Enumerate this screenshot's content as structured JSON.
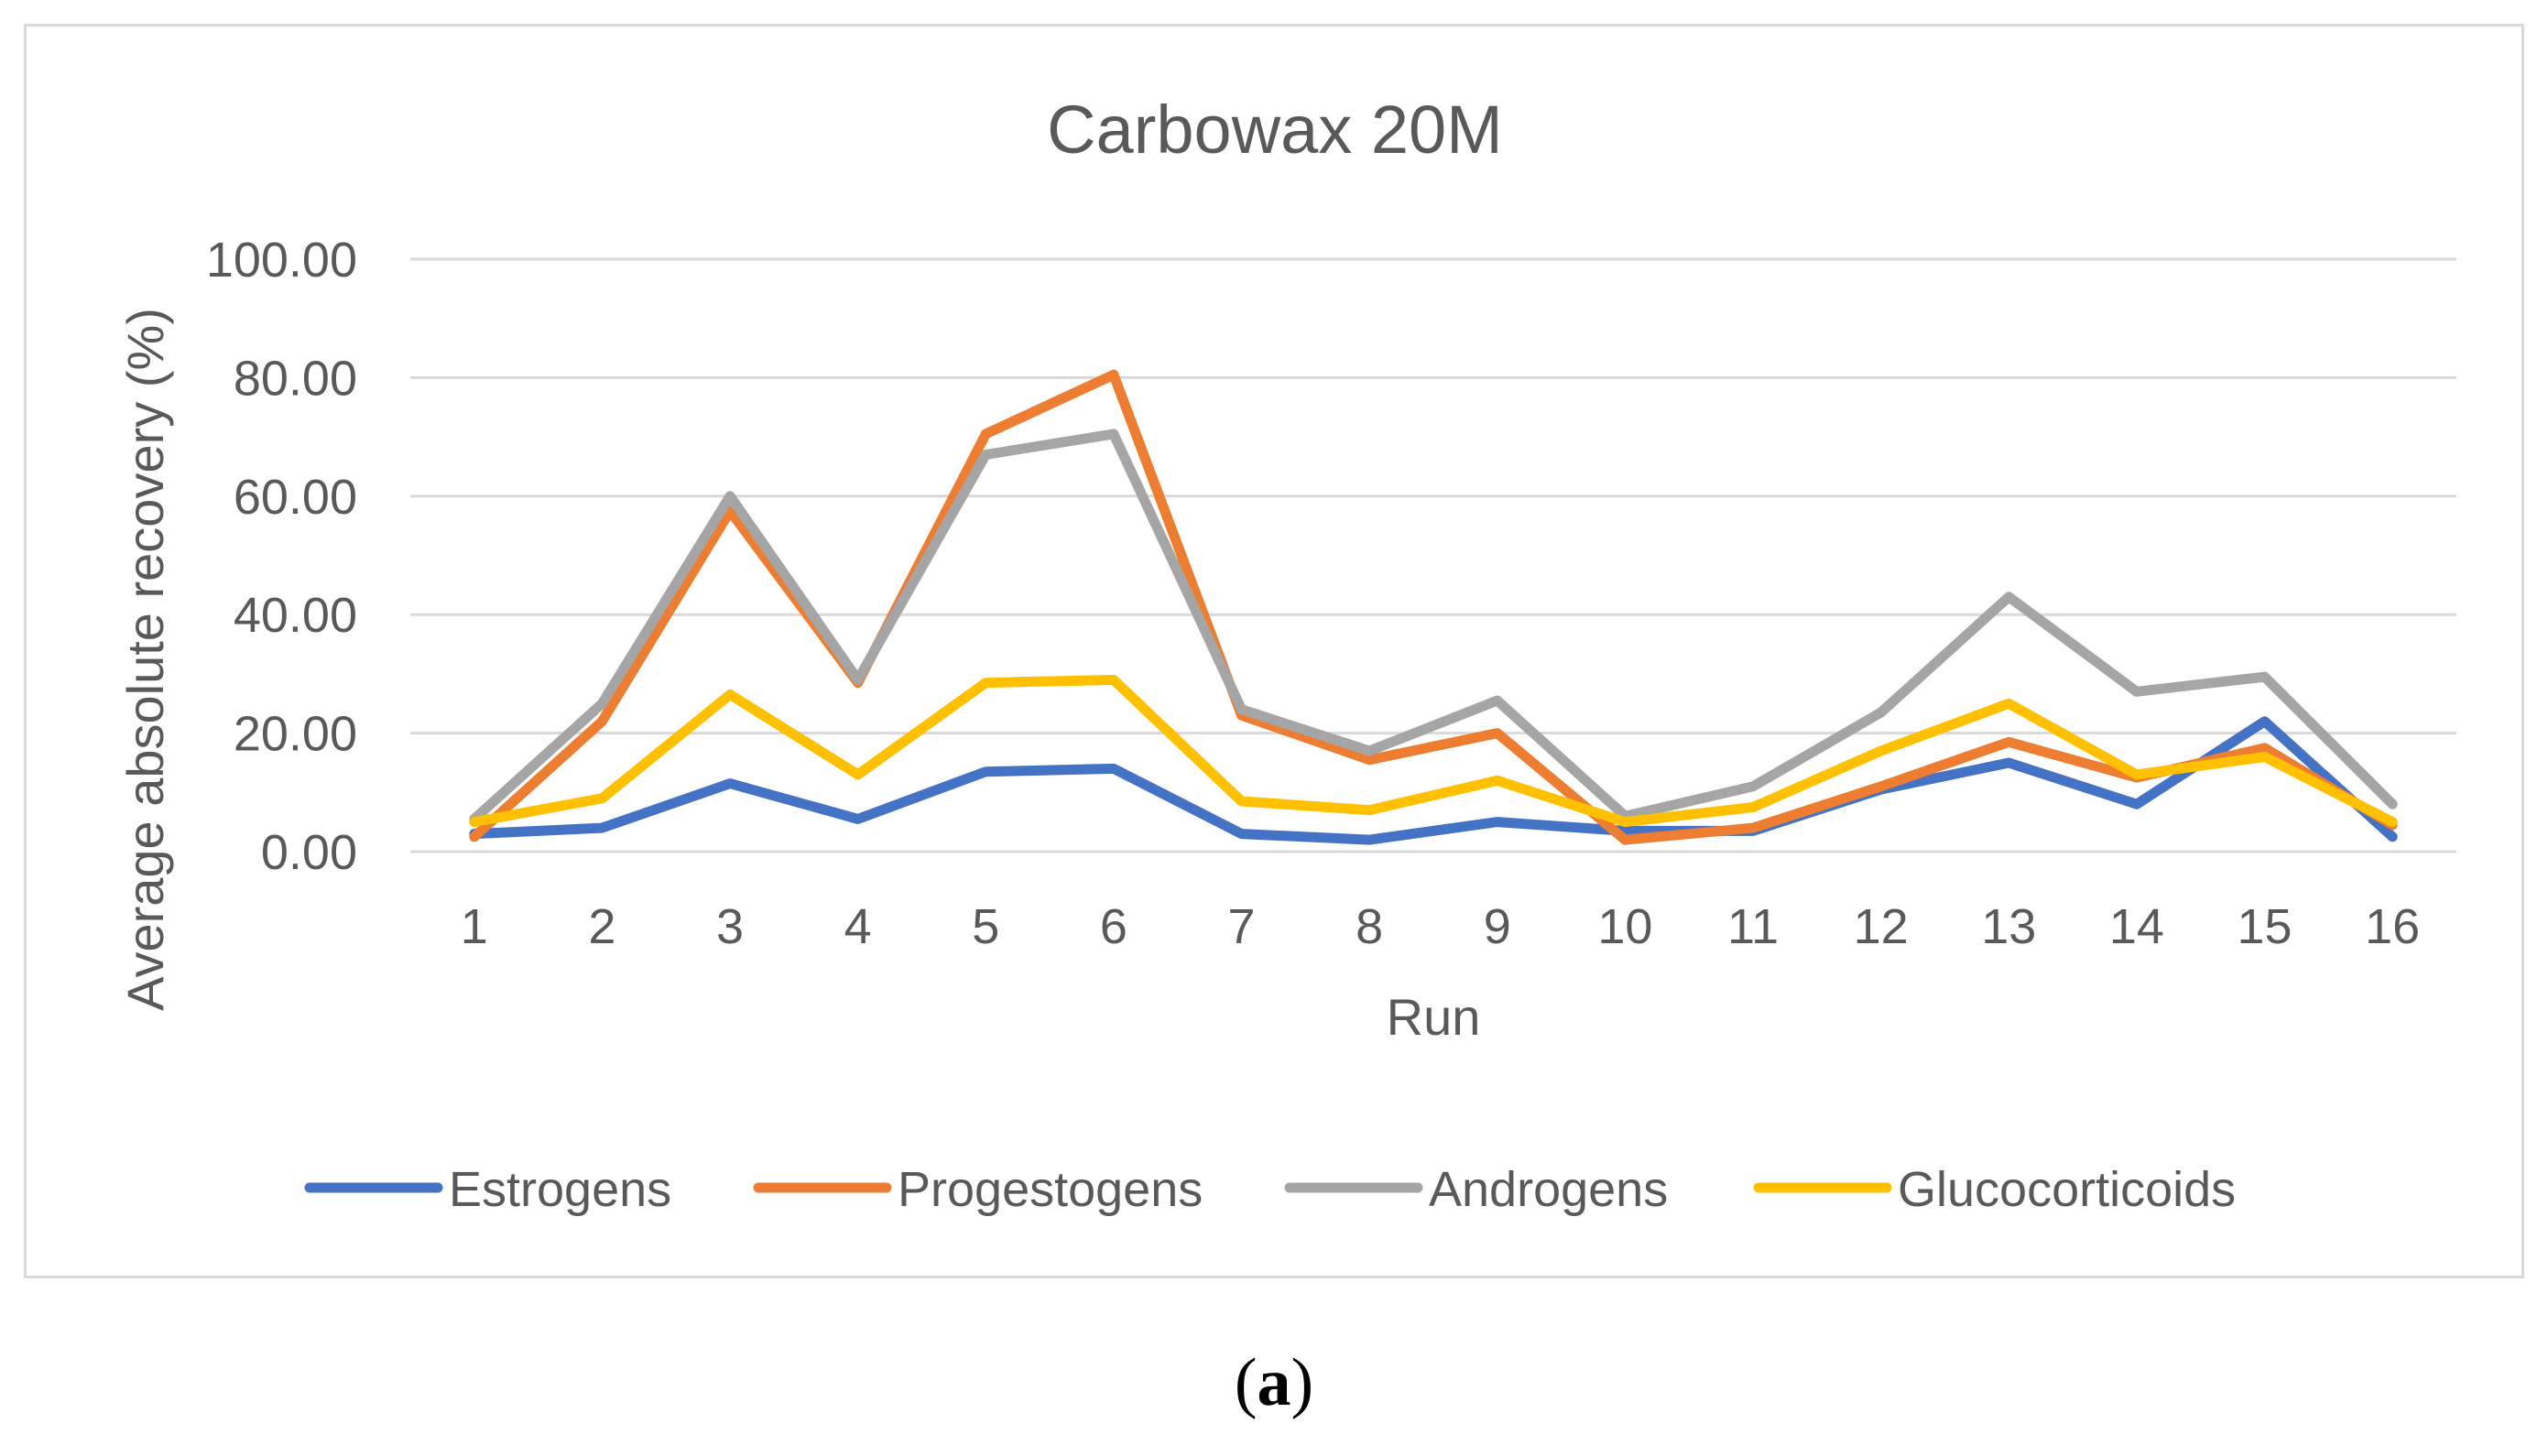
{
  "chart_data": {
    "type": "line",
    "title": "Carbowax 20M",
    "xlabel": "Run",
    "ylabel": "Average absolute recovery (%)",
    "categories": [
      "1",
      "2",
      "3",
      "4",
      "5",
      "6",
      "7",
      "8",
      "9",
      "10",
      "11",
      "12",
      "13",
      "14",
      "15",
      "16"
    ],
    "ylim": [
      0,
      100
    ],
    "yticks": [
      "0.00",
      "20.00",
      "40.00",
      "60.00",
      "80.00",
      "100.00"
    ],
    "grid": true,
    "legend_position": "bottom",
    "series": [
      {
        "name": "Estrogens",
        "color": "#4472c4",
        "values": [
          3.0,
          4.0,
          11.5,
          5.5,
          13.5,
          14.0,
          3.0,
          2.0,
          5.0,
          3.5,
          3.5,
          10.5,
          15.0,
          8.0,
          22.0,
          2.5
        ]
      },
      {
        "name": "Progestogens",
        "color": "#ed7d31",
        "values": [
          2.5,
          22.0,
          57.5,
          28.5,
          70.5,
          80.5,
          23.0,
          15.5,
          20.0,
          2.0,
          4.0,
          11.0,
          18.5,
          12.5,
          17.5,
          4.5
        ]
      },
      {
        "name": "Androgens",
        "color": "#a5a5a5",
        "values": [
          5.5,
          25.0,
          60.0,
          29.0,
          67.0,
          70.5,
          24.0,
          17.0,
          25.5,
          6.0,
          11.0,
          23.5,
          43.0,
          27.0,
          29.5,
          8.0
        ]
      },
      {
        "name": "Glucocorticoids",
        "color": "#ffc000",
        "values": [
          5.0,
          9.0,
          26.5,
          13.0,
          28.5,
          29.0,
          8.5,
          7.0,
          12.0,
          5.0,
          7.5,
          17.0,
          25.0,
          13.0,
          16.0,
          5.0
        ]
      }
    ]
  },
  "caption": {
    "open": "(",
    "letter": "a",
    "close": ")"
  }
}
